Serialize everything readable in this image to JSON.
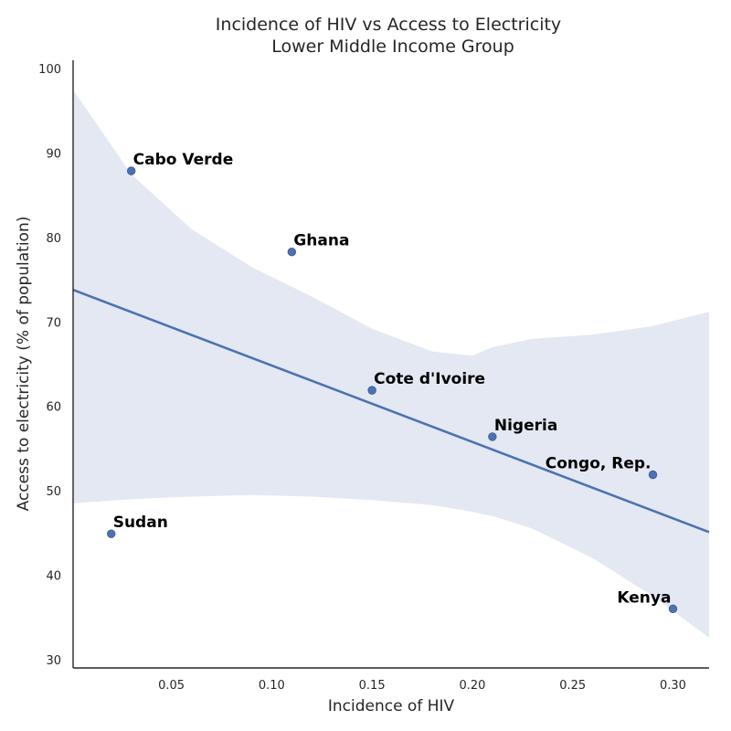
{
  "chart_data": {
    "type": "scatter",
    "title": "Incidence of HIV vs Access to Electricity",
    "subtitle": "Lower Middle Income Group",
    "xlabel": "Incidence of HIV",
    "ylabel": "Access to electricity (% of population)",
    "xlim": [
      0.001,
      0.318
    ],
    "ylim": [
      29,
      101
    ],
    "xticks": [
      "0.05",
      "0.10",
      "0.15",
      "0.20",
      "0.25",
      "0.30"
    ],
    "yticks": [
      "30",
      "40",
      "50",
      "60",
      "70",
      "80",
      "90",
      "100"
    ],
    "grid": false,
    "points": [
      {
        "label": "Cabo Verde",
        "x": 0.03,
        "y": 87.9
      },
      {
        "label": "Ghana",
        "x": 0.11,
        "y": 78.3
      },
      {
        "label": "Cote d'Ivoire",
        "x": 0.15,
        "y": 61.9
      },
      {
        "label": "Nigeria",
        "x": 0.21,
        "y": 56.4
      },
      {
        "label": "Congo, Rep.",
        "x": 0.29,
        "y": 51.9
      },
      {
        "label": "Sudan",
        "x": 0.02,
        "y": 44.9
      },
      {
        "label": "Kenya",
        "x": 0.3,
        "y": 36.0
      }
    ],
    "regression_line": {
      "x": [
        0.001,
        0.318
      ],
      "y": [
        73.8,
        45.1
      ]
    },
    "confidence_band": {
      "x": [
        0.001,
        0.03,
        0.06,
        0.09,
        0.12,
        0.15,
        0.18,
        0.2,
        0.21,
        0.23,
        0.26,
        0.29,
        0.318
      ],
      "upper": [
        97.5,
        87.5,
        81.0,
        76.5,
        73.0,
        69.2,
        66.5,
        66.0,
        67.0,
        68.0,
        68.5,
        69.5,
        71.2
      ],
      "lower": [
        48.5,
        49.0,
        49.3,
        49.5,
        49.3,
        48.9,
        48.3,
        47.5,
        47.0,
        45.5,
        42.0,
        37.5,
        32.6
      ]
    },
    "colors": {
      "point": "#4c72b0",
      "line": "#4c72b0",
      "band": "#e3e8f3"
    }
  }
}
